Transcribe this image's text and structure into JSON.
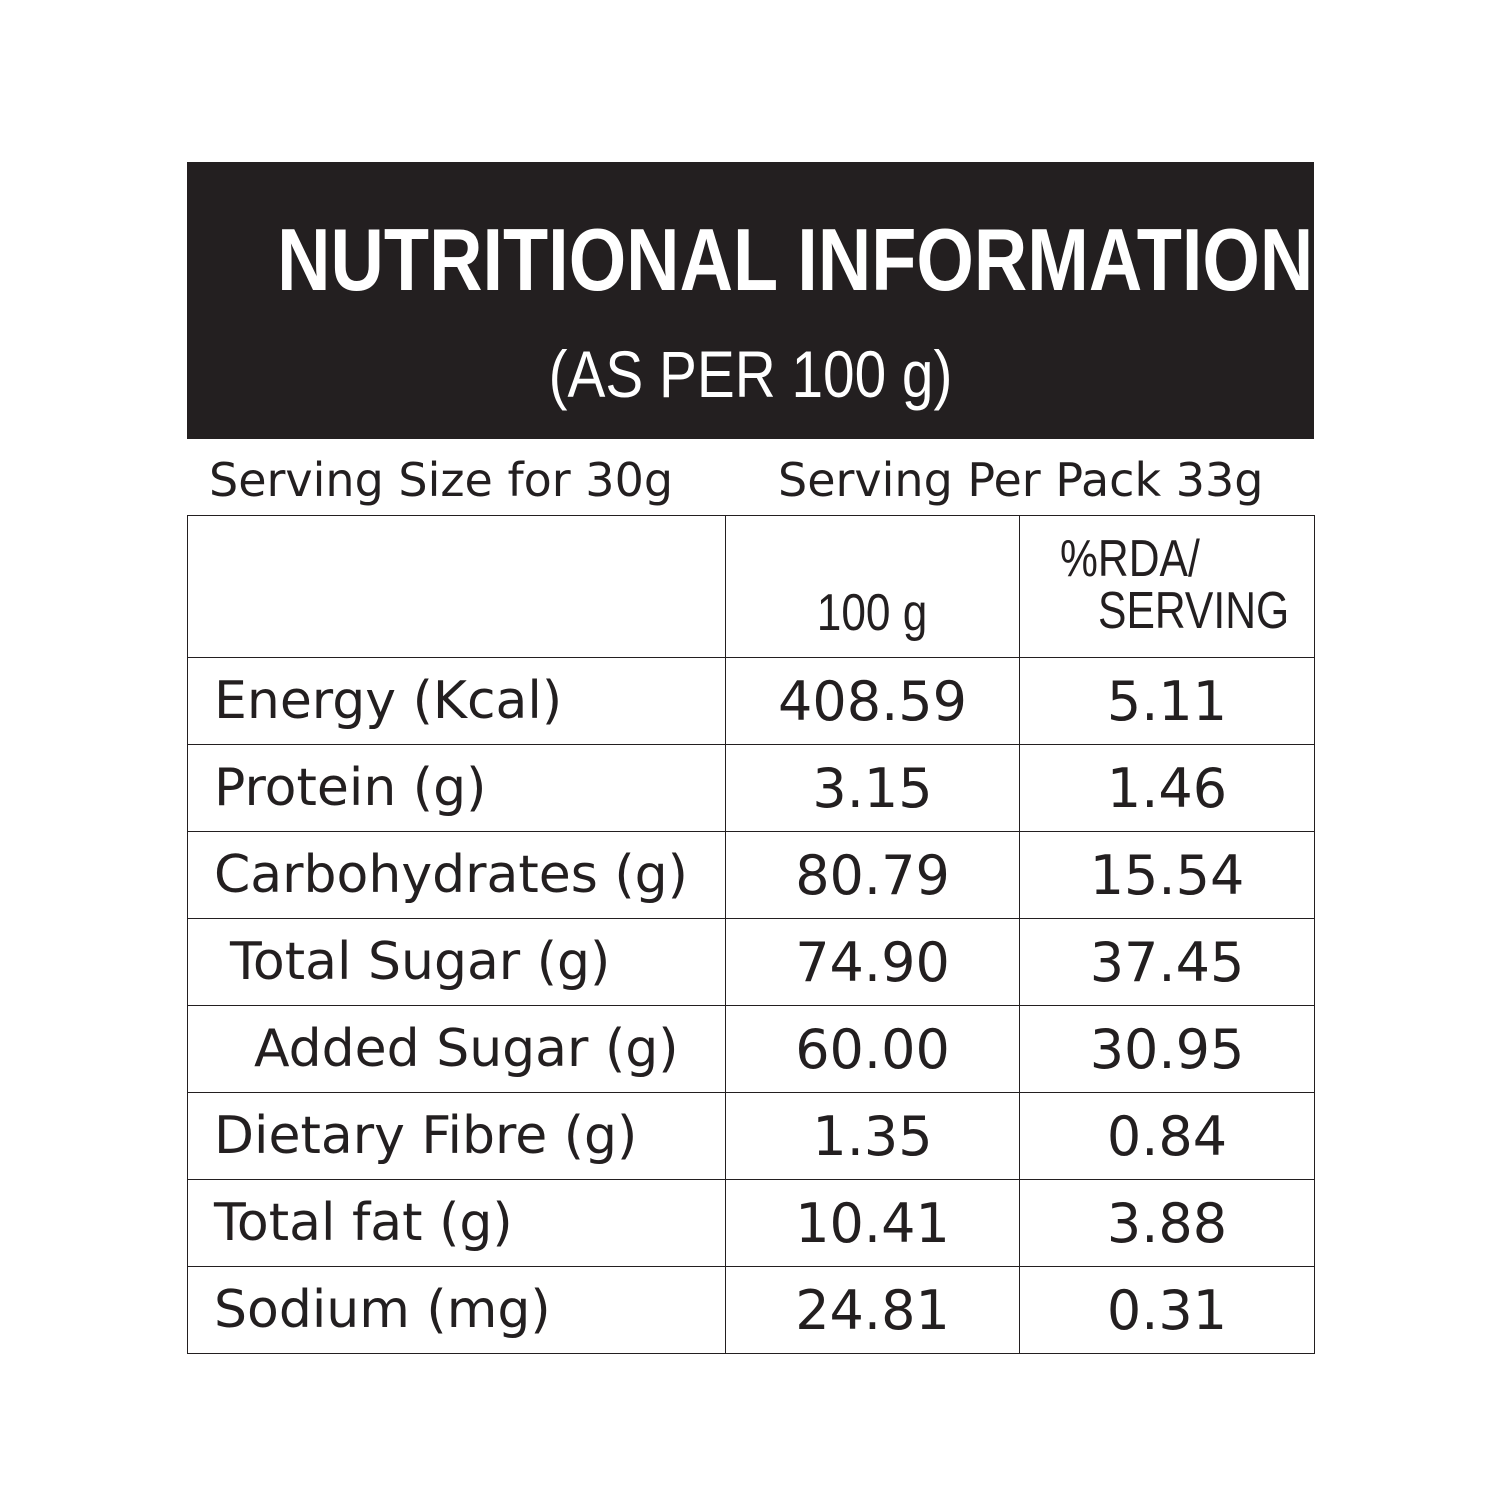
{
  "header": {
    "title": "NUTRITIONAL INFORMATION",
    "subtitle": "(AS PER 100 g)"
  },
  "serving": {
    "size": "Serving Size for 30g",
    "per_pack": "Serving Per Pack 33g"
  },
  "table": {
    "columns": [
      "",
      "100 g",
      "%RDA/",
      "SERVING"
    ],
    "rows": [
      {
        "nutrient": "Energy (Kcal)",
        "per_100g": "408.59",
        "rda": "5.11"
      },
      {
        "nutrient": "Protein (g)",
        "per_100g": "3.15",
        "rda": "1.46"
      },
      {
        "nutrient": "Carbohydrates (g)",
        "per_100g": "80.79",
        "rda": "15.54"
      },
      {
        "nutrient": "Total Sugar (g)",
        "per_100g": "74.90",
        "rda": "37.45"
      },
      {
        "nutrient": "Added Sugar (g)",
        "per_100g": "60.00",
        "rda": "30.95"
      },
      {
        "nutrient": "Dietary Fibre (g)",
        "per_100g": "1.35",
        "rda": "0.84"
      },
      {
        "nutrient": "Total fat (g)",
        "per_100g": "10.41",
        "rda": "3.88"
      },
      {
        "nutrient": "Sodium (mg)",
        "per_100g": "24.81",
        "rda": "0.31"
      }
    ]
  }
}
